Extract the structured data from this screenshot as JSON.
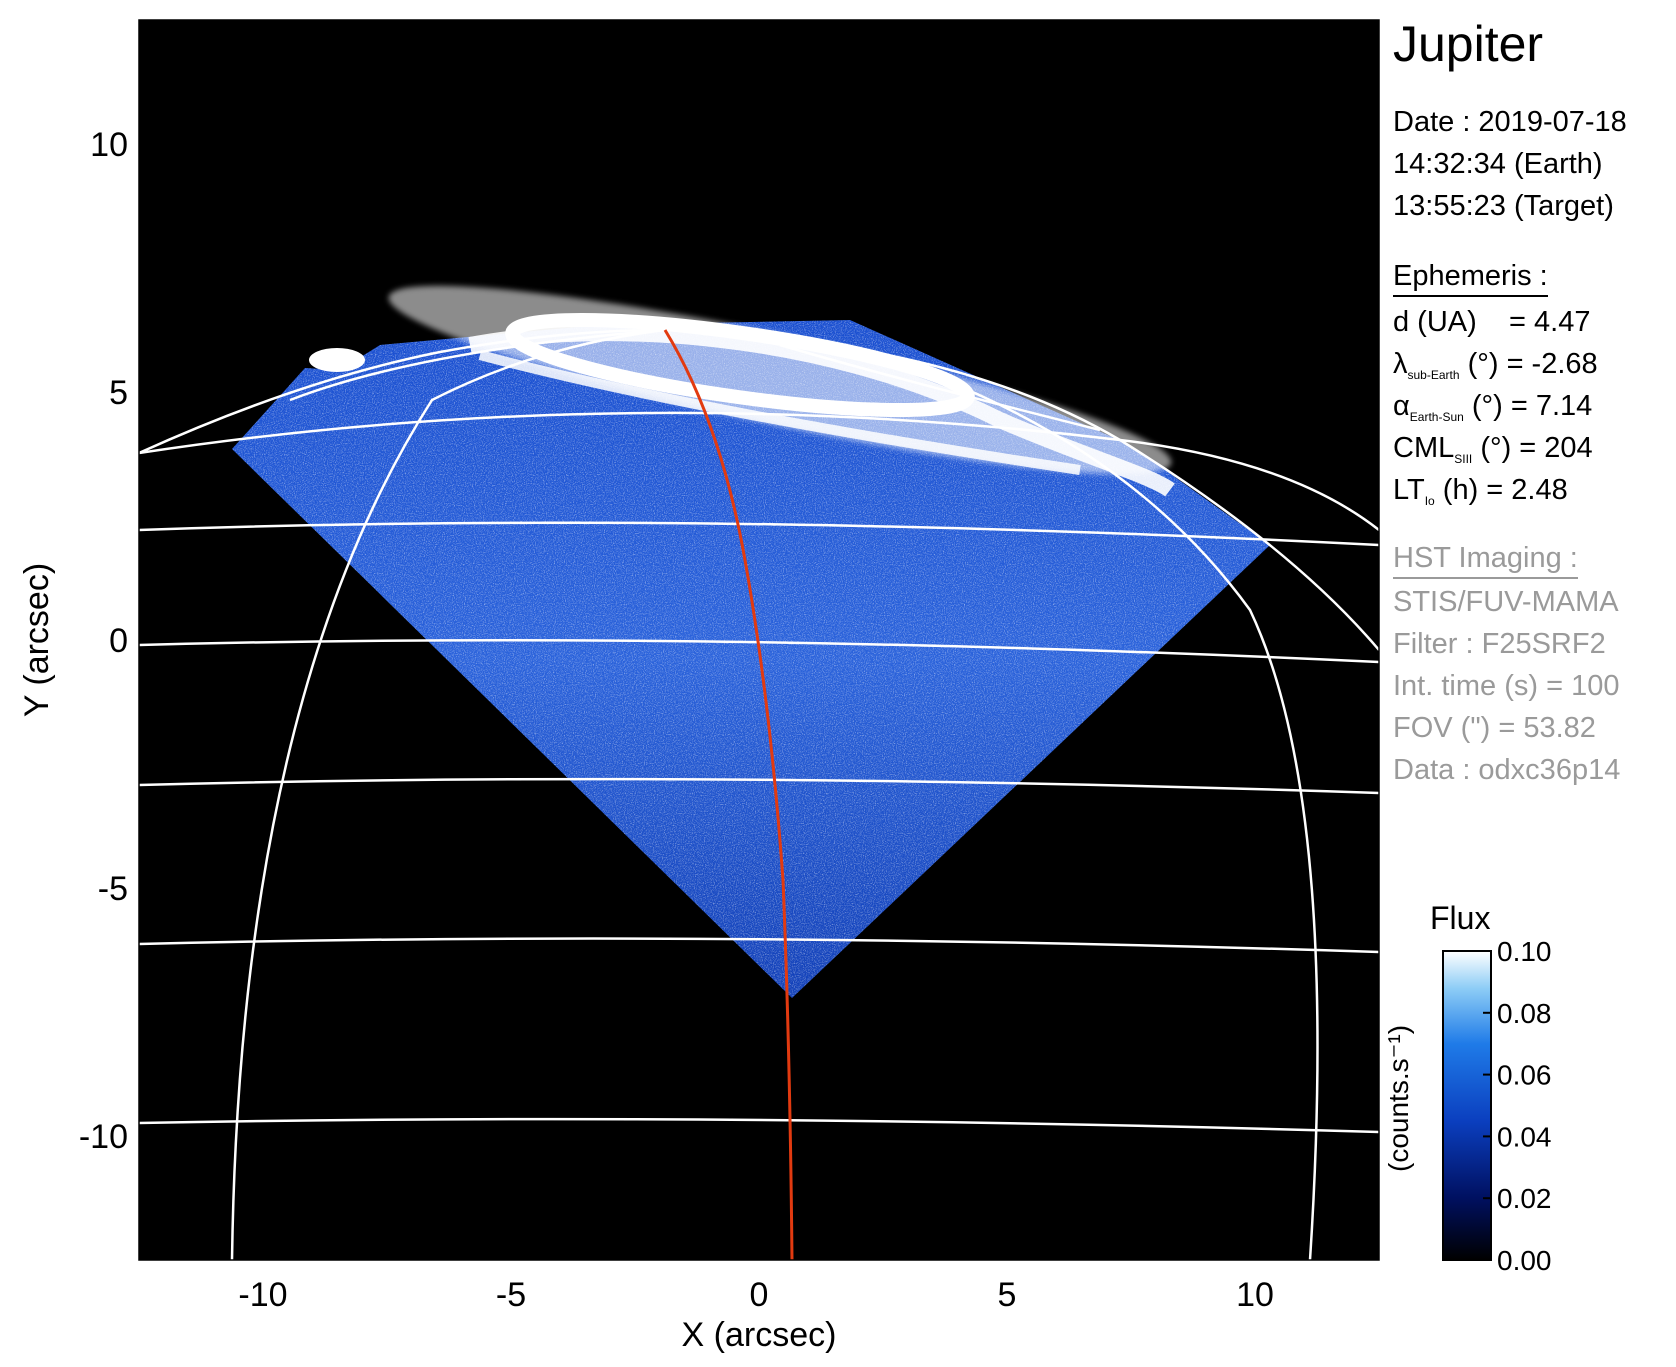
{
  "plot": {
    "xlabel": "X (arcsec)",
    "ylabel": "Y (arcsec)",
    "x_ticks": [
      "-10",
      "-5",
      "0",
      "5",
      "10"
    ],
    "y_ticks": [
      "10",
      "5",
      "0",
      "-5",
      "-10"
    ],
    "xlim": [
      -12.5,
      12.5
    ],
    "ylim": [
      -12.5,
      12.5
    ],
    "background_color": "#000000",
    "grid_color": "#ffffff",
    "meridian_color": "#e23a10"
  },
  "info": {
    "target": "Jupiter",
    "date_line": "Date : 2019-07-18",
    "earth_time": "14:32:34 (Earth)",
    "target_time": "13:55:23 (Target)",
    "ephemeris_header": "Ephemeris :",
    "d_label": "d (UA)",
    "d_value": "= 4.47",
    "lambda_symbol": "λ",
    "lambda_sub": "sub-Earth",
    "lambda_rest": "(°) = -2.68",
    "alpha_symbol": "α",
    "alpha_sub": "Earth-Sun",
    "alpha_rest": "(°) = 7.14",
    "cml_symbol": "CML",
    "cml_sub": "SIII",
    "cml_rest": "(°) = 204",
    "lt_symbol": "LT",
    "lt_sub": "Io",
    "lt_rest": "(h) = 2.48",
    "hst_header": "HST Imaging :",
    "instrument": "STIS/FUV-MAMA",
    "filter": "Filter : F25SRF2",
    "int_time": "Int. time (s) = 100",
    "fov": "FOV (\") = 53.82",
    "dataset": "Data : odxc36p14"
  },
  "colorbar": {
    "title": "Flux",
    "unit": "(counts.s⁻¹)",
    "ticks": [
      "0.10",
      "0.08",
      "0.06",
      "0.04",
      "0.02",
      "0.00"
    ],
    "range": [
      0.0,
      0.1
    ],
    "colors": [
      "#000000",
      "#001060",
      "#0b3fbf",
      "#1f7be8",
      "#8ecdf6",
      "#ffffff"
    ]
  }
}
